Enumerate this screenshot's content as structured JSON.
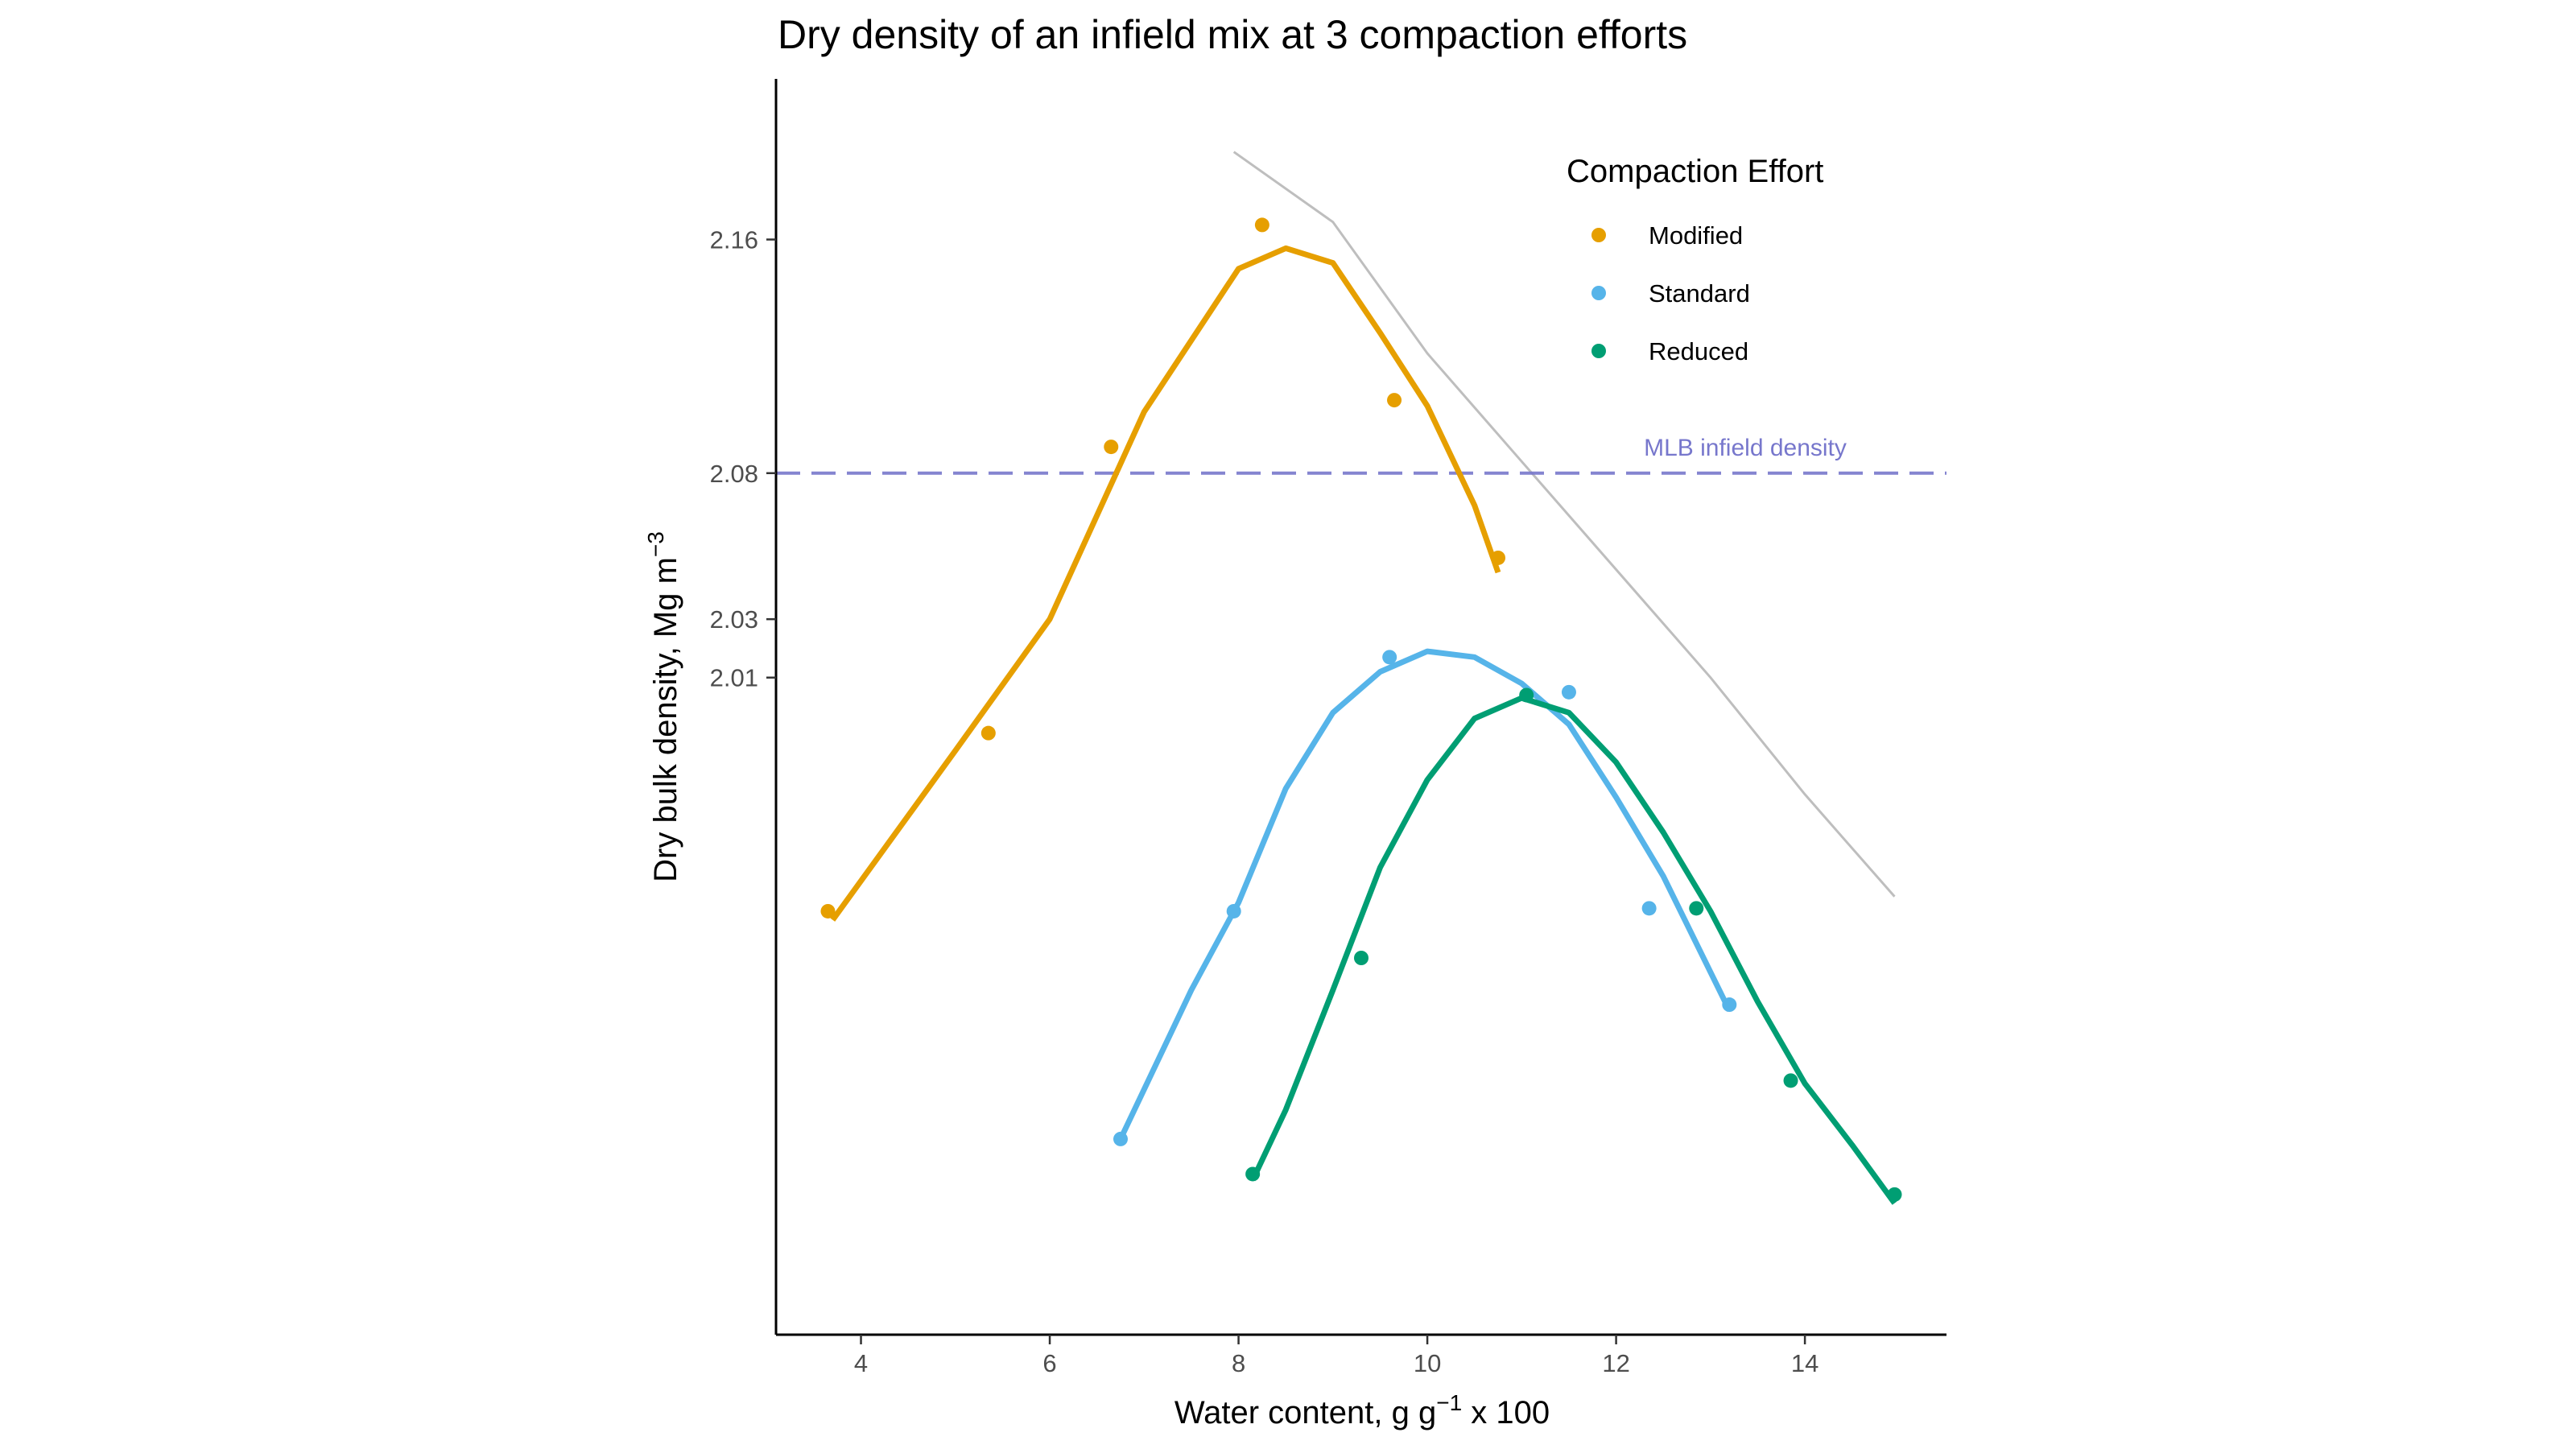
{
  "chart_data": {
    "type": "scatter",
    "title": "Dry density of an infield mix at 3 compaction efforts",
    "xlabel_main": "Water content, g g",
    "xlabel_sup": "−1",
    "xlabel_tail": " x 100",
    "ylabel_main": "Dry bulk density, Mg m",
    "ylabel_sup": "−3",
    "xlim": [
      3.1,
      15.5
    ],
    "ylim": [
      1.785,
      2.215
    ],
    "x_ticks": [
      4,
      6,
      8,
      10,
      12,
      14
    ],
    "y_ticks": [
      2.01,
      2.03,
      2.08,
      2.16
    ],
    "grid": false,
    "legend_position": "top-right",
    "legend_title": "Compaction Effort",
    "series": [
      {
        "name": "Modified",
        "color": "#E69F00",
        "points": [
          [
            3.65,
            1.93
          ],
          [
            5.35,
            1.991
          ],
          [
            6.65,
            2.089
          ],
          [
            8.25,
            2.165
          ],
          [
            9.65,
            2.105
          ],
          [
            10.75,
            2.051
          ]
        ],
        "curve": [
          [
            3.7,
            1.927
          ],
          [
            5.0,
            1.985
          ],
          [
            6.0,
            2.03
          ],
          [
            7.0,
            2.101
          ],
          [
            8.0,
            2.15
          ],
          [
            8.5,
            2.157
          ],
          [
            9.0,
            2.152
          ],
          [
            9.5,
            2.128
          ],
          [
            10.0,
            2.103
          ],
          [
            10.5,
            2.069
          ],
          [
            10.75,
            2.046
          ]
        ]
      },
      {
        "name": "Standard",
        "color": "#56B4E9",
        "points": [
          [
            6.75,
            1.852
          ],
          [
            7.95,
            1.93
          ],
          [
            9.6,
            2.017
          ],
          [
            11.5,
            2.005
          ],
          [
            12.35,
            1.931
          ],
          [
            13.2,
            1.898
          ]
        ],
        "curve": [
          [
            6.75,
            1.852
          ],
          [
            7.5,
            1.903
          ],
          [
            8.0,
            1.933
          ],
          [
            8.5,
            1.972
          ],
          [
            9.0,
            1.998
          ],
          [
            9.5,
            2.012
          ],
          [
            10.0,
            2.019
          ],
          [
            10.5,
            2.017
          ],
          [
            11.0,
            2.008
          ],
          [
            11.5,
            1.994
          ],
          [
            12.0,
            1.969
          ],
          [
            12.5,
            1.942
          ],
          [
            13.2,
            1.896
          ]
        ]
      },
      {
        "name": "Reduced",
        "color": "#009E73",
        "points": [
          [
            8.15,
            1.84
          ],
          [
            9.3,
            1.914
          ],
          [
            11.05,
            2.004
          ],
          [
            12.85,
            1.931
          ],
          [
            13.85,
            1.872
          ],
          [
            14.95,
            1.833
          ]
        ],
        "curve": [
          [
            8.15,
            1.838
          ],
          [
            8.5,
            1.862
          ],
          [
            9.0,
            1.903
          ],
          [
            9.5,
            1.945
          ],
          [
            10.0,
            1.975
          ],
          [
            10.5,
            1.996
          ],
          [
            11.0,
            2.003
          ],
          [
            11.5,
            1.998
          ],
          [
            12.0,
            1.981
          ],
          [
            12.5,
            1.957
          ],
          [
            13.0,
            1.93
          ],
          [
            13.5,
            1.899
          ],
          [
            14.0,
            1.871
          ],
          [
            14.5,
            1.85
          ],
          [
            14.95,
            1.83
          ]
        ]
      }
    ],
    "reference_line": {
      "label": "MLB infield density",
      "y": 2.08,
      "color": "#7777CC"
    },
    "saturation_line": {
      "color": "#BEBEBE",
      "points": [
        [
          7.95,
          2.19
        ],
        [
          9.0,
          2.166
        ],
        [
          10.0,
          2.121
        ],
        [
          11.0,
          2.084
        ],
        [
          12.0,
          2.047
        ],
        [
          13.0,
          2.01
        ],
        [
          14.0,
          1.97
        ],
        [
          14.95,
          1.935
        ]
      ]
    }
  }
}
